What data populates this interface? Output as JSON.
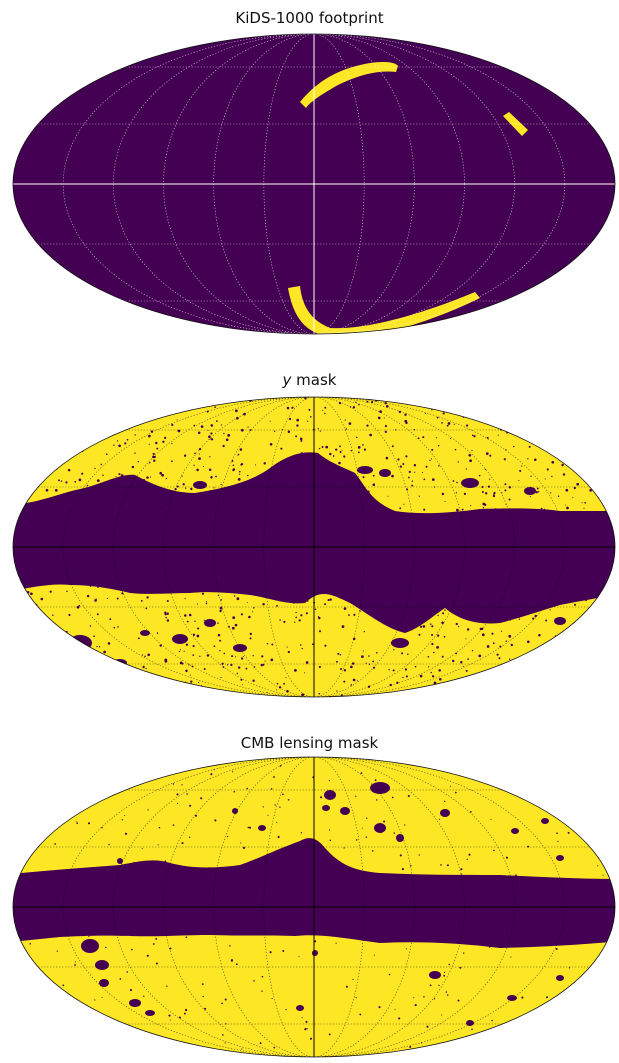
{
  "panels": [
    {
      "id": "kids",
      "title": "KiDS-1000 footprint",
      "graticule_color": "#ffffff"
    },
    {
      "id": "y",
      "title_symbol": "y",
      "title_rest": " mask",
      "graticule_color": "#000000"
    },
    {
      "id": "cmb",
      "title": "CMB lensing mask",
      "graticule_color": "#000000"
    }
  ],
  "colors": {
    "masked": "#440154",
    "unmasked": "#fde725"
  }
}
